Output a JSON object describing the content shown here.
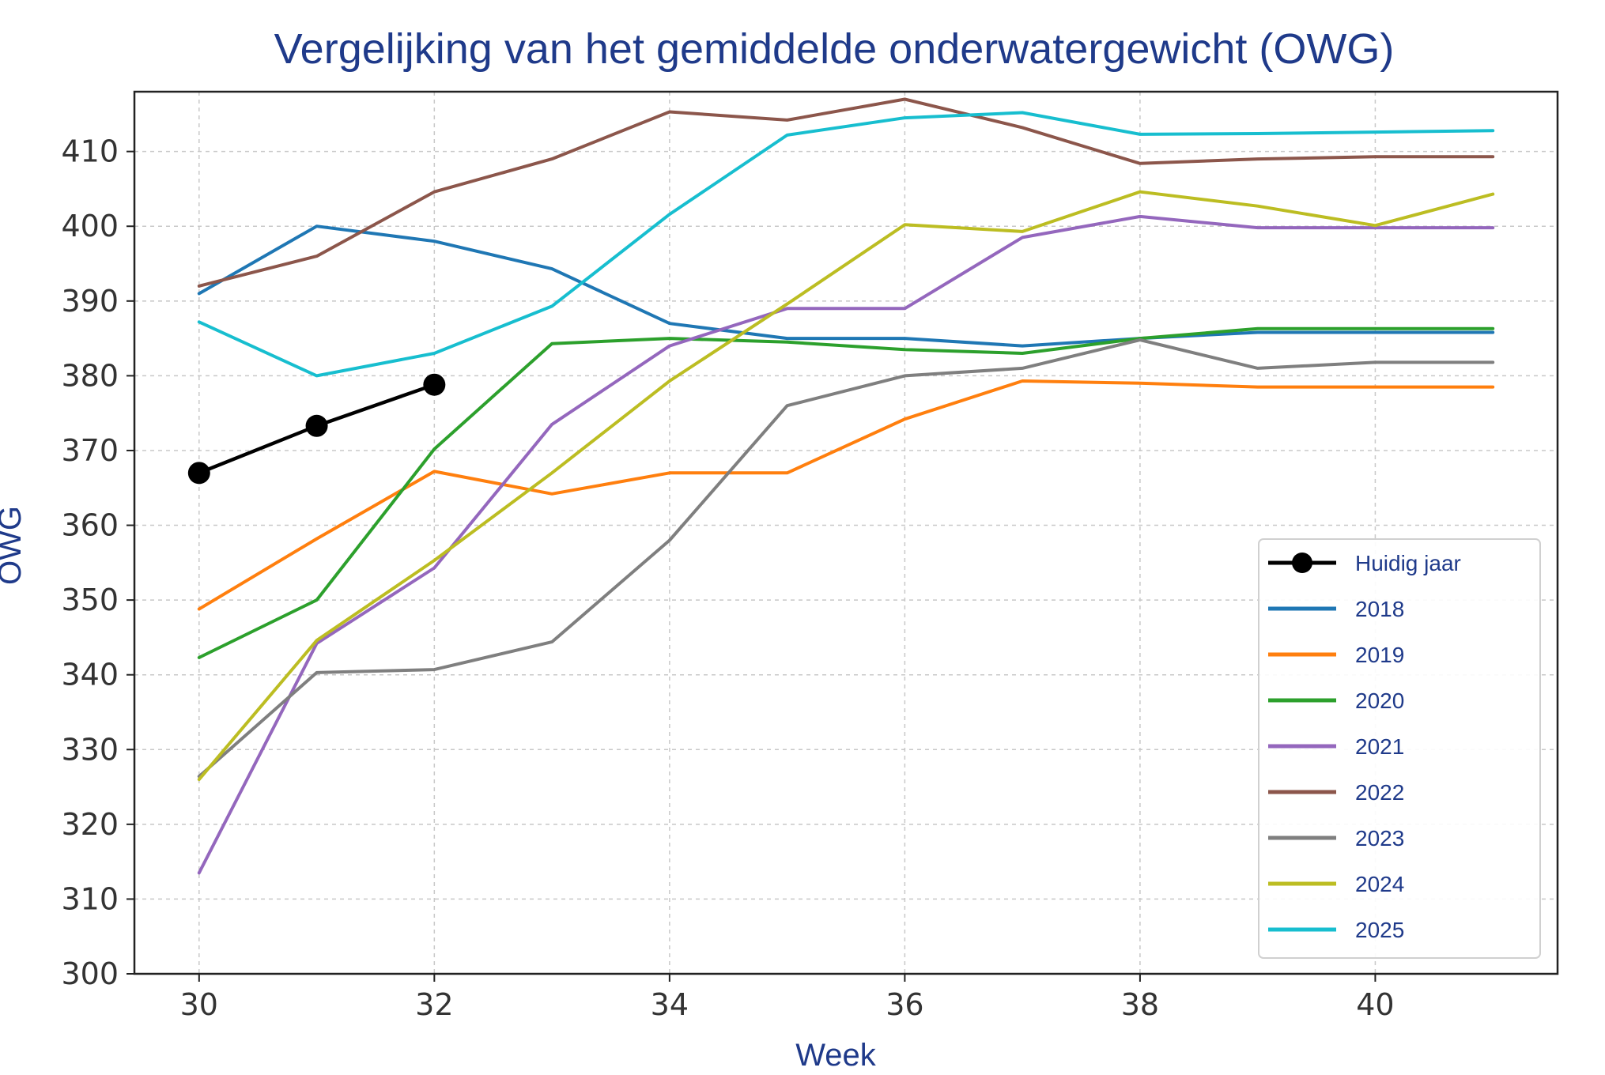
{
  "chart_data": {
    "type": "line",
    "title": "Vergelijking van het gemiddelde onderwatergewicht (OWG)",
    "xlabel": "Week",
    "ylabel": "OWG",
    "xlim": [
      29.45,
      41.55
    ],
    "ylim": [
      300,
      418
    ],
    "xticks": [
      30,
      32,
      34,
      36,
      38,
      40
    ],
    "yticks": [
      300,
      310,
      320,
      330,
      340,
      350,
      360,
      370,
      380,
      390,
      400,
      410
    ],
    "grid": true,
    "legend_position": "lower-right",
    "series": [
      {
        "name": "Huidig jaar",
        "color": "#000000",
        "marker": "circle",
        "x": [
          30,
          31,
          32
        ],
        "y": [
          367,
          373.3,
          378.8
        ]
      },
      {
        "name": "2018",
        "color": "#1f77b4",
        "x": [
          30,
          31,
          32,
          33,
          34,
          35,
          36,
          37,
          38,
          39,
          40,
          41
        ],
        "y": [
          391,
          400,
          398,
          394.3,
          387,
          385,
          385,
          384,
          385,
          385.8,
          385.8,
          385.8
        ]
      },
      {
        "name": "2019",
        "color": "#ff7f0e",
        "x": [
          30,
          31,
          32,
          33,
          34,
          35,
          36,
          37,
          38,
          39,
          40,
          41
        ],
        "y": [
          348.8,
          358.2,
          367.2,
          364.2,
          367,
          367,
          374.2,
          379.3,
          379,
          378.5,
          378.5,
          378.5
        ]
      },
      {
        "name": "2020",
        "color": "#2ca02c",
        "x": [
          30,
          31,
          32,
          33,
          34,
          35,
          36,
          37,
          38,
          39,
          40,
          41
        ],
        "y": [
          342.3,
          350,
          370.2,
          384.3,
          385,
          384.5,
          383.5,
          383,
          385,
          386.3,
          386.3,
          386.3
        ]
      },
      {
        "name": "2021",
        "color": "#9467bd",
        "x": [
          30,
          31,
          32,
          33,
          34,
          35,
          36,
          37,
          38,
          39,
          40,
          41
        ],
        "y": [
          313.5,
          344.2,
          354.3,
          373.5,
          384,
          389,
          389,
          398.5,
          401.3,
          399.8,
          399.8,
          399.8
        ]
      },
      {
        "name": "2022",
        "color": "#8c564b",
        "x": [
          30,
          31,
          32,
          33,
          34,
          35,
          36,
          37,
          38,
          39,
          40,
          41
        ],
        "y": [
          392,
          396,
          404.6,
          409,
          415.3,
          414.2,
          417,
          413.2,
          408.4,
          409,
          409.3,
          409.3
        ]
      },
      {
        "name": "2023",
        "color": "#7f7f7f",
        "x": [
          30,
          31,
          32,
          33,
          34,
          35,
          36,
          37,
          38,
          39,
          40,
          41
        ],
        "y": [
          326.4,
          340.3,
          340.7,
          344.4,
          358,
          376,
          380,
          381,
          384.8,
          381,
          381.8,
          381.8
        ]
      },
      {
        "name": "2024",
        "color": "#bcbd22",
        "x": [
          30,
          31,
          32,
          33,
          34,
          35,
          36,
          37,
          38,
          39,
          40,
          41
        ],
        "y": [
          326,
          344.6,
          355.3,
          367,
          379.3,
          389.6,
          400.2,
          399.3,
          404.6,
          402.7,
          400.1,
          404.3
        ]
      },
      {
        "name": "2025",
        "color": "#17becf",
        "x": [
          30,
          31,
          32,
          33,
          34,
          35,
          36,
          37,
          38,
          39,
          40,
          41
        ],
        "y": [
          387.2,
          380,
          383,
          389.3,
          401.6,
          412.2,
          414.5,
          415.2,
          412.3,
          412.4,
          412.6,
          412.8
        ]
      }
    ]
  }
}
